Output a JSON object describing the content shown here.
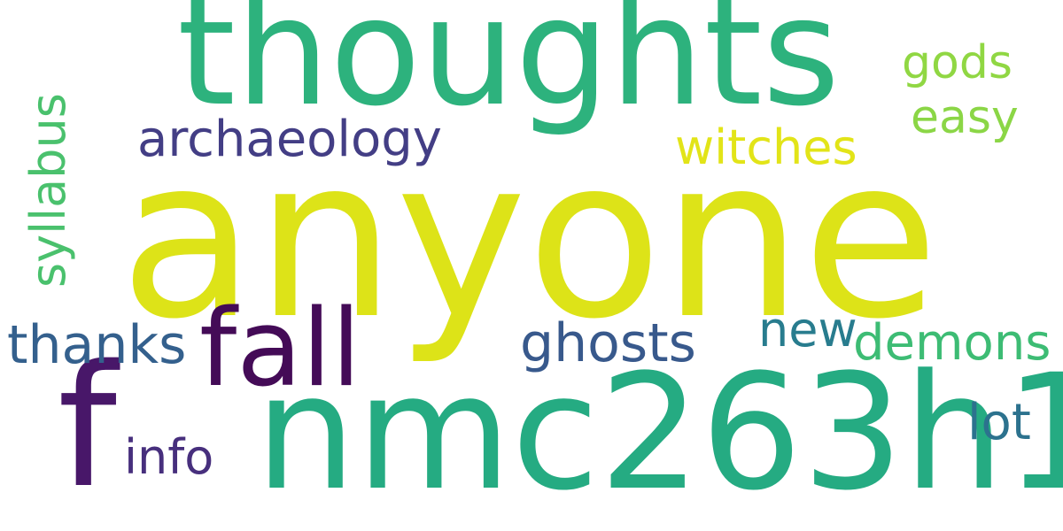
{
  "words": [
    {
      "id": "thoughts",
      "text": "thoughts",
      "color": "#2db27d"
    },
    {
      "id": "anyone",
      "text": "anyone",
      "color": "#dde318"
    },
    {
      "id": "nmc263h1",
      "text": "nmc263h1",
      "color": "#25ab82"
    },
    {
      "id": "fall",
      "text": "fall",
      "color": "#440b57"
    },
    {
      "id": "f",
      "text": "f",
      "color": "#481769"
    },
    {
      "id": "archaeology",
      "text": "archaeology",
      "color": "#433e85"
    },
    {
      "id": "witches",
      "text": "witches",
      "color": "#e2e418"
    },
    {
      "id": "gods",
      "text": "gods",
      "color": "#90d743"
    },
    {
      "id": "easy",
      "text": "easy",
      "color": "#8bd646"
    },
    {
      "id": "thanks",
      "text": "thanks",
      "color": "#34608d"
    },
    {
      "id": "ghosts",
      "text": "ghosts",
      "color": "#38598c"
    },
    {
      "id": "new",
      "text": "new",
      "color": "#287c8e"
    },
    {
      "id": "demons",
      "text": "demons",
      "color": "#3dbc74"
    },
    {
      "id": "info",
      "text": "info",
      "color": "#472f7d"
    },
    {
      "id": "lot",
      "text": "lot",
      "color": "#2c728e"
    },
    {
      "id": "syllabus",
      "text": "syllabus",
      "color": "#4ac16d"
    }
  ]
}
